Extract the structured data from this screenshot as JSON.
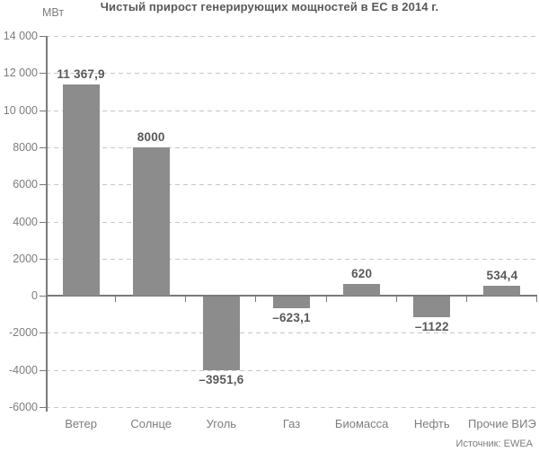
{
  "header": {
    "title": "Чистый прирост генерирующих мощностей в ЕС в 2014 г.",
    "unit_label": "МВт"
  },
  "footer": {
    "source": "Источник: EWEA"
  },
  "chart_data": {
    "type": "bar",
    "title": "Чистый прирост генерирующих мощностей в ЕС в 2014 г.",
    "xlabel": "",
    "ylabel": "МВт",
    "categories": [
      "Ветер",
      "Солнце",
      "Уголь",
      "Газ",
      "Биомасса",
      "Нефть",
      "Прочие ВИЭ"
    ],
    "values": [
      11367.9,
      8000,
      -3951.6,
      -623.1,
      620,
      -1122,
      534.4
    ],
    "value_labels": [
      "11 367,9",
      "8000",
      "–3951,6",
      "–623,1",
      "620",
      "–1122",
      "534,4"
    ],
    "ylim": [
      -6000,
      14000
    ],
    "ytick_step": 2000,
    "ytick_values": [
      14000,
      12000,
      10000,
      8000,
      6000,
      4000,
      2000,
      0,
      -2000,
      -4000,
      -6000
    ],
    "ytick_labels": [
      "14 000",
      "12 000",
      "10 000",
      "8000",
      "6000",
      "4000",
      "2000",
      "0",
      "-2000",
      "-4000",
      "-6000"
    ],
    "grid": "horizontal-dashed",
    "legend": "none",
    "source": "Источник: EWEA"
  },
  "colors": {
    "bar": "#8c8c8c",
    "grid": "#c7c7c7",
    "axis": "#7a7a7a",
    "label_dark": "#595959",
    "label_gray": "#7d7d7d",
    "background": "#ffffff"
  }
}
